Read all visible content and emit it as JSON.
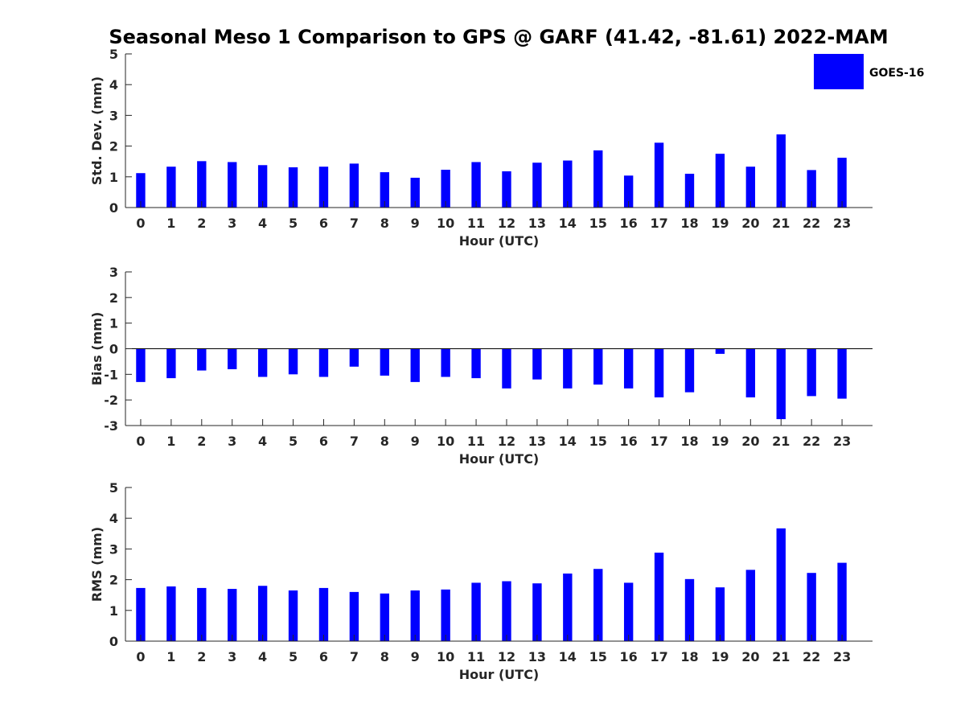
{
  "chart_data": {
    "type": "bar",
    "title": "Seasonal Meso 1 Comparison to GPS @ GARF (41.42, -81.61) 2022-MAM",
    "color": "#0000ff",
    "legend": {
      "label": "GOES-16",
      "placement": "top-right"
    },
    "panels": [
      {
        "type": "bar",
        "xlabel": "Hour (UTC)",
        "ylabel": "Std. Dev. (mm)",
        "ylim": [
          0,
          5
        ],
        "yticks": [
          0,
          1,
          2,
          3,
          4,
          5
        ],
        "categories": [
          "0",
          "1",
          "2",
          "3",
          "4",
          "5",
          "6",
          "7",
          "8",
          "9",
          "10",
          "11",
          "12",
          "13",
          "14",
          "15",
          "16",
          "17",
          "18",
          "19",
          "20",
          "21",
          "22",
          "23"
        ],
        "values": [
          1.12,
          1.33,
          1.51,
          1.48,
          1.38,
          1.31,
          1.33,
          1.43,
          1.15,
          0.97,
          1.23,
          1.48,
          1.18,
          1.46,
          1.53,
          1.86,
          1.04,
          2.11,
          1.1,
          1.75,
          1.33,
          2.38,
          1.22,
          1.62
        ]
      },
      {
        "type": "bar",
        "xlabel": "Hour (UTC)",
        "ylabel": "Bias (mm)",
        "ylim": [
          -3,
          3
        ],
        "yticks": [
          -3,
          -2,
          -1,
          0,
          1,
          2,
          3
        ],
        "categories": [
          "0",
          "1",
          "2",
          "3",
          "4",
          "5",
          "6",
          "7",
          "8",
          "9",
          "10",
          "11",
          "12",
          "13",
          "14",
          "15",
          "16",
          "17",
          "18",
          "19",
          "20",
          "21",
          "22",
          "23"
        ],
        "values": [
          -1.3,
          -1.15,
          -0.85,
          -0.8,
          -1.1,
          -1.0,
          -1.1,
          -0.7,
          -1.05,
          -1.3,
          -1.1,
          -1.15,
          -1.55,
          -1.2,
          -1.55,
          -1.4,
          -1.55,
          -1.9,
          -1.7,
          -0.2,
          -1.9,
          -2.75,
          -1.85,
          -1.95
        ]
      },
      {
        "type": "bar",
        "xlabel": "Hour (UTC)",
        "ylabel": "RMS (mm)",
        "ylim": [
          0,
          5
        ],
        "yticks": [
          0,
          1,
          2,
          3,
          4,
          5
        ],
        "categories": [
          "0",
          "1",
          "2",
          "3",
          "4",
          "5",
          "6",
          "7",
          "8",
          "9",
          "10",
          "11",
          "12",
          "13",
          "14",
          "15",
          "16",
          "17",
          "18",
          "19",
          "20",
          "21",
          "22",
          "23"
        ],
        "values": [
          1.73,
          1.78,
          1.73,
          1.7,
          1.8,
          1.65,
          1.73,
          1.6,
          1.55,
          1.65,
          1.68,
          1.9,
          1.95,
          1.88,
          2.2,
          2.35,
          1.9,
          2.88,
          2.02,
          1.75,
          2.32,
          3.67,
          2.22,
          2.55
        ]
      }
    ]
  }
}
